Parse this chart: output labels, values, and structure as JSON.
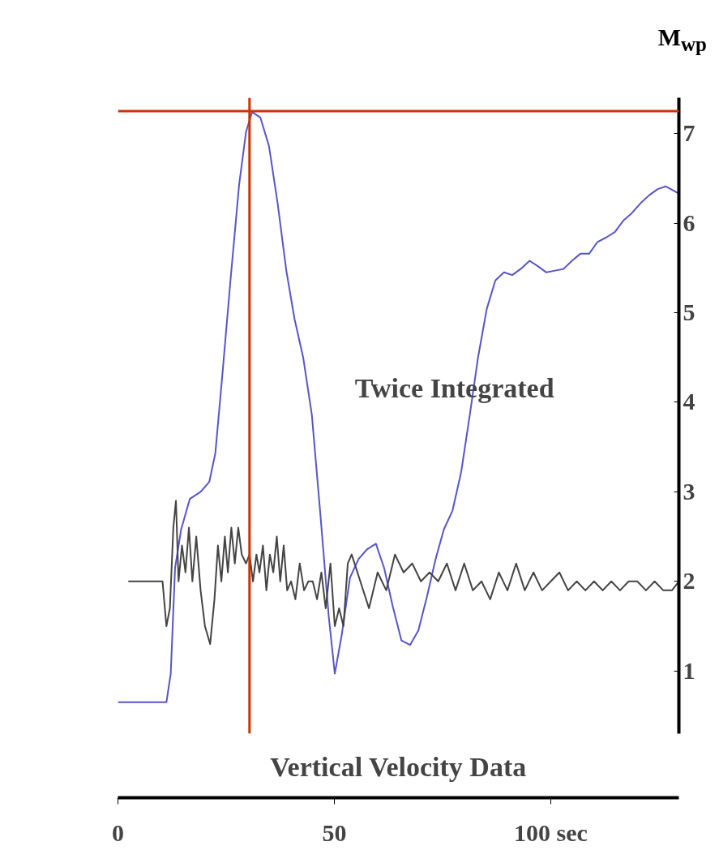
{
  "chart_data": {
    "type": "line",
    "ylabel": "M$_{wp}$",
    "annotations": [
      "Twice Integrated",
      "Vertical Velocity Data"
    ],
    "xlim": [
      0,
      129.6
    ],
    "ylim": [
      0.3,
      7.4
    ],
    "xticks": [
      0,
      50,
      {
        "value": 100,
        "label": "100 sec"
      }
    ],
    "yticks": [
      1,
      2,
      3,
      4,
      5,
      6,
      7
    ],
    "grid": false,
    "line_style": "solid",
    "marker": "none",
    "ref_lines": [
      {
        "axis": "y",
        "value": 7.25,
        "color": "#cc3300"
      },
      {
        "axis": "x",
        "value": 30.4,
        "color": "#cc3300"
      }
    ],
    "series": [
      {
        "color": "#5555cc",
        "x": [
          0,
          11.2,
          12.2,
          13.2,
          14.6,
          16.6,
          19.1,
          21.1,
          22.5,
          24.1,
          26.0,
          28.0,
          29.6,
          31.0,
          32.9,
          34.9,
          36.9,
          38.9,
          40.8,
          42.8,
          44.8,
          46.7,
          48.7,
          50.1,
          51.7,
          53.6,
          55.6,
          57.6,
          59.6,
          61.5,
          63.5,
          65.5,
          67.5,
          69.4,
          71.4,
          73.4,
          75.3,
          77.3,
          79.3,
          81.3,
          83.2,
          85.2,
          87.2,
          89.2,
          91.1,
          93.1,
          95.1,
          97.0,
          99.0,
          101.0,
          103.0,
          104.9,
          106.9,
          108.9,
          110.8,
          112.8,
          114.8,
          116.8,
          118.7,
          120.7,
          122.7,
          124.7,
          126.6,
          129.6
        ],
        "values": [
          0.65,
          0.65,
          0.97,
          2.15,
          2.58,
          2.92,
          3.0,
          3.11,
          3.43,
          4.29,
          5.36,
          6.43,
          7.02,
          7.24,
          7.18,
          6.86,
          6.22,
          5.47,
          4.93,
          4.5,
          3.86,
          2.79,
          1.61,
          0.97,
          1.4,
          2.04,
          2.25,
          2.36,
          2.42,
          2.15,
          1.72,
          1.34,
          1.29,
          1.45,
          1.83,
          2.25,
          2.58,
          2.79,
          3.22,
          3.86,
          4.5,
          5.04,
          5.36,
          5.45,
          5.42,
          5.49,
          5.58,
          5.52,
          5.45,
          5.47,
          5.49,
          5.58,
          5.66,
          5.66,
          5.79,
          5.84,
          5.9,
          6.03,
          6.11,
          6.22,
          6.31,
          6.38,
          6.41,
          6.33
        ]
      },
      {
        "color": "#444444",
        "x": [
          2.4,
          10.3,
          11.2,
          12.0,
          12.8,
          13.4,
          14.0,
          14.8,
          15.6,
          16.4,
          17.2,
          18.1,
          19.1,
          20.1,
          21.3,
          22.3,
          23.1,
          23.9,
          24.7,
          25.4,
          26.2,
          27.0,
          27.8,
          28.6,
          29.6,
          30.4,
          31.2,
          32.0,
          32.7,
          33.5,
          34.3,
          35.1,
          35.9,
          36.7,
          37.5,
          38.3,
          39.1,
          40.0,
          41.0,
          42.0,
          43.0,
          44.0,
          45.0,
          46.0,
          47.0,
          48.0,
          49.1,
          50.1,
          51.1,
          52.1,
          53.1,
          54.0,
          56.0,
          58.0,
          60.0,
          62.0,
          64.0,
          66.0,
          68.0,
          70.0,
          72,
          74,
          76,
          78,
          80,
          82,
          84,
          86,
          88,
          90,
          92,
          94,
          96,
          98,
          100,
          102,
          104,
          106,
          108,
          110,
          112,
          114,
          116,
          118,
          120,
          122,
          124,
          126,
          128,
          129.6
        ],
        "values": [
          2.0,
          2.0,
          1.5,
          1.7,
          2.6,
          2.9,
          2.0,
          2.4,
          2.1,
          2.6,
          2.0,
          2.5,
          1.9,
          1.5,
          1.3,
          1.8,
          2.4,
          2.0,
          2.5,
          2.1,
          2.6,
          2.2,
          2.6,
          2.3,
          2.2,
          2.3,
          2.0,
          2.3,
          2.1,
          2.4,
          1.9,
          2.3,
          2.1,
          2.5,
          2.0,
          2.4,
          1.9,
          2.0,
          1.8,
          2.2,
          1.9,
          2.0,
          2.0,
          1.8,
          2.1,
          1.7,
          2.2,
          1.5,
          1.7,
          1.5,
          2.2,
          2.3,
          2.0,
          1.7,
          2.1,
          1.9,
          2.3,
          2.1,
          2.2,
          2.0,
          2.1,
          2.0,
          2.2,
          1.9,
          2.2,
          1.9,
          2.0,
          1.8,
          2.1,
          1.9,
          2.2,
          1.9,
          2.1,
          1.9,
          2.0,
          2.1,
          1.9,
          2.0,
          1.9,
          2.0,
          1.9,
          2.0,
          1.9,
          2.0,
          2.0,
          1.9,
          2.0,
          1.9,
          1.9,
          2.0
        ]
      }
    ]
  }
}
